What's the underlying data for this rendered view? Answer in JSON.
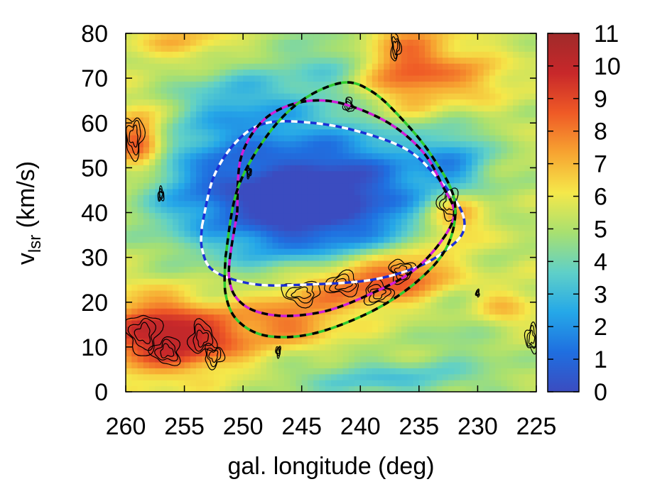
{
  "chart_data": {
    "type": "heatmap",
    "title": "",
    "xlabel": "gal. longitude (deg)",
    "ylabel": {
      "main": "v",
      "subscript": "lsr",
      "unit": " (km/s)"
    },
    "xlim": [
      260,
      225
    ],
    "ylim": [
      0,
      80
    ],
    "x_ticks": [
      "260",
      "255",
      "250",
      "245",
      "240",
      "235",
      "230",
      "225"
    ],
    "y_ticks": [
      "0",
      "10",
      "20",
      "30",
      "40",
      "50",
      "60",
      "70",
      "80"
    ],
    "colorbar": {
      "range": [
        0,
        11
      ],
      "ticks": [
        "0",
        "1",
        "2",
        "3",
        "4",
        "5",
        "6",
        "7",
        "8",
        "9",
        "10",
        "11"
      ],
      "colors": [
        "#3b4cc0",
        "#1f6fe0",
        "#25a8e8",
        "#5fd0c8",
        "#a8e070",
        "#f5e84a",
        "#f7a431",
        "#ef5a26",
        "#c8282a",
        "#a02a2a"
      ]
    },
    "heatmap_blobs": [
      {
        "l": 243,
        "v": 45,
        "sl": 7,
        "sv": 11,
        "w": -5.5
      },
      {
        "l": 247,
        "v": 38,
        "sl": 5,
        "sv": 7,
        "w": -1.5
      },
      {
        "l": 252,
        "v": 50,
        "sl": 3,
        "sv": 8,
        "w": -1.5
      },
      {
        "l": 250,
        "v": 65,
        "sl": 4,
        "sv": 6,
        "w": -2.0
      },
      {
        "l": 242,
        "v": 74,
        "sl": 3,
        "sv": 5,
        "w": -1.5
      },
      {
        "l": 232,
        "v": 50,
        "sl": 2,
        "sv": 6,
        "w": -2.5
      },
      {
        "l": 256,
        "v": 44,
        "sl": 3,
        "sv": 8,
        "w": -1.0
      },
      {
        "l": 238,
        "v": 3,
        "sl": 6,
        "sv": 3,
        "w": -2.0
      },
      {
        "l": 230,
        "v": 14,
        "sl": 3,
        "sv": 6,
        "w": -1.2
      },
      {
        "l": 258,
        "v": 13,
        "sl": 3,
        "sv": 6,
        "w": 4.0
      },
      {
        "l": 253,
        "v": 12,
        "sl": 3,
        "sv": 5,
        "w": 3.0
      },
      {
        "l": 246,
        "v": 16,
        "sl": 3,
        "sv": 4,
        "w": 2.5
      },
      {
        "l": 241,
        "v": 24,
        "sl": 4,
        "sv": 4,
        "w": 3.0
      },
      {
        "l": 236,
        "v": 27,
        "sl": 3,
        "sv": 4,
        "w": 2.8
      },
      {
        "l": 232,
        "v": 40,
        "sl": 2,
        "sv": 5,
        "w": 3.5
      },
      {
        "l": 236,
        "v": 72,
        "sl": 3,
        "sv": 7,
        "w": 3.5
      },
      {
        "l": 259,
        "v": 56,
        "sl": 1.5,
        "sv": 5,
        "w": 3.5
      },
      {
        "l": 230,
        "v": 70,
        "sl": 2,
        "sv": 4,
        "w": 1.5
      },
      {
        "l": 228,
        "v": 18,
        "sl": 2,
        "sv": 4,
        "w": 2.0
      },
      {
        "l": 255,
        "v": 78,
        "sl": 3,
        "sv": 3,
        "w": 1.5
      }
    ],
    "contours": [
      {
        "l": 258.5,
        "v": 13,
        "rl": 1.4,
        "rv": 4.5
      },
      {
        "l": 256.5,
        "v": 9,
        "rl": 1.2,
        "rv": 3
      },
      {
        "l": 253.5,
        "v": 12,
        "rl": 1.1,
        "rv": 3.5
      },
      {
        "l": 252.5,
        "v": 8,
        "rl": 0.8,
        "rv": 2.5
      },
      {
        "l": 245,
        "v": 22,
        "rl": 1.6,
        "rv": 2.5
      },
      {
        "l": 241.5,
        "v": 24,
        "rl": 1.4,
        "rv": 2.5
      },
      {
        "l": 238.5,
        "v": 22,
        "rl": 1.2,
        "rv": 2.5
      },
      {
        "l": 236.5,
        "v": 27,
        "rl": 1.0,
        "rv": 2.5
      },
      {
        "l": 232.5,
        "v": 42,
        "rl": 0.8,
        "rv": 3.5
      },
      {
        "l": 241,
        "v": 64,
        "rl": 0.4,
        "rv": 1.6
      },
      {
        "l": 237,
        "v": 77,
        "rl": 0.4,
        "rv": 3
      },
      {
        "l": 259.3,
        "v": 57,
        "rl": 0.8,
        "rv": 4.5
      },
      {
        "l": 225.4,
        "v": 12,
        "rl": 0.5,
        "rv": 3
      },
      {
        "l": 257,
        "v": 44,
        "rl": 0.25,
        "rv": 1.5
      },
      {
        "l": 249.5,
        "v": 49,
        "rl": 0.2,
        "rv": 1.2
      },
      {
        "l": 247,
        "v": 9,
        "rl": 0.2,
        "rv": 1.2
      },
      {
        "l": 230,
        "v": 22,
        "rl": 0.15,
        "rv": 0.8
      }
    ],
    "series": [
      {
        "color": "#1a2fd6",
        "dash_overlay": "#ffffff",
        "points": [
          [
            253.5,
            37
          ],
          [
            252.5,
            48
          ],
          [
            250.5,
            56
          ],
          [
            248,
            60
          ],
          [
            244,
            60
          ],
          [
            240,
            58
          ],
          [
            236,
            54
          ],
          [
            233.5,
            48
          ],
          [
            231.5,
            41
          ],
          [
            231.2,
            36
          ],
          [
            232.5,
            32
          ],
          [
            235,
            28
          ],
          [
            239,
            25
          ],
          [
            244,
            24
          ],
          [
            249,
            24
          ],
          [
            252.5,
            27
          ],
          [
            253.5,
            32
          ],
          [
            253.5,
            37
          ]
        ]
      },
      {
        "color": "#d11cd8",
        "dash_overlay": "#000000",
        "points": [
          [
            250.5,
            40
          ],
          [
            250.2,
            52
          ],
          [
            248.5,
            60
          ],
          [
            246,
            64
          ],
          [
            243,
            65
          ],
          [
            240,
            63
          ],
          [
            237,
            59
          ],
          [
            234.5,
            53
          ],
          [
            233,
            46
          ],
          [
            232,
            40
          ],
          [
            233,
            34
          ],
          [
            235.5,
            27
          ],
          [
            239,
            22
          ],
          [
            243,
            18
          ],
          [
            247,
            17
          ],
          [
            250,
            19.5
          ],
          [
            251.2,
            26
          ],
          [
            250.5,
            40
          ]
        ]
      },
      {
        "color": "#2ecc2e",
        "dash_overlay": "#000000",
        "points": [
          [
            251.5,
            30
          ],
          [
            250.5,
            45
          ],
          [
            248,
            57
          ],
          [
            245,
            65
          ],
          [
            241.5,
            69
          ],
          [
            239,
            67
          ],
          [
            236.5,
            61
          ],
          [
            234,
            53
          ],
          [
            232,
            43
          ],
          [
            232.5,
            33
          ],
          [
            235,
            25
          ],
          [
            239,
            18
          ],
          [
            244,
            13
          ],
          [
            248,
            12.5
          ],
          [
            250.5,
            16
          ],
          [
            251.5,
            22
          ],
          [
            251.5,
            30
          ]
        ]
      }
    ]
  }
}
